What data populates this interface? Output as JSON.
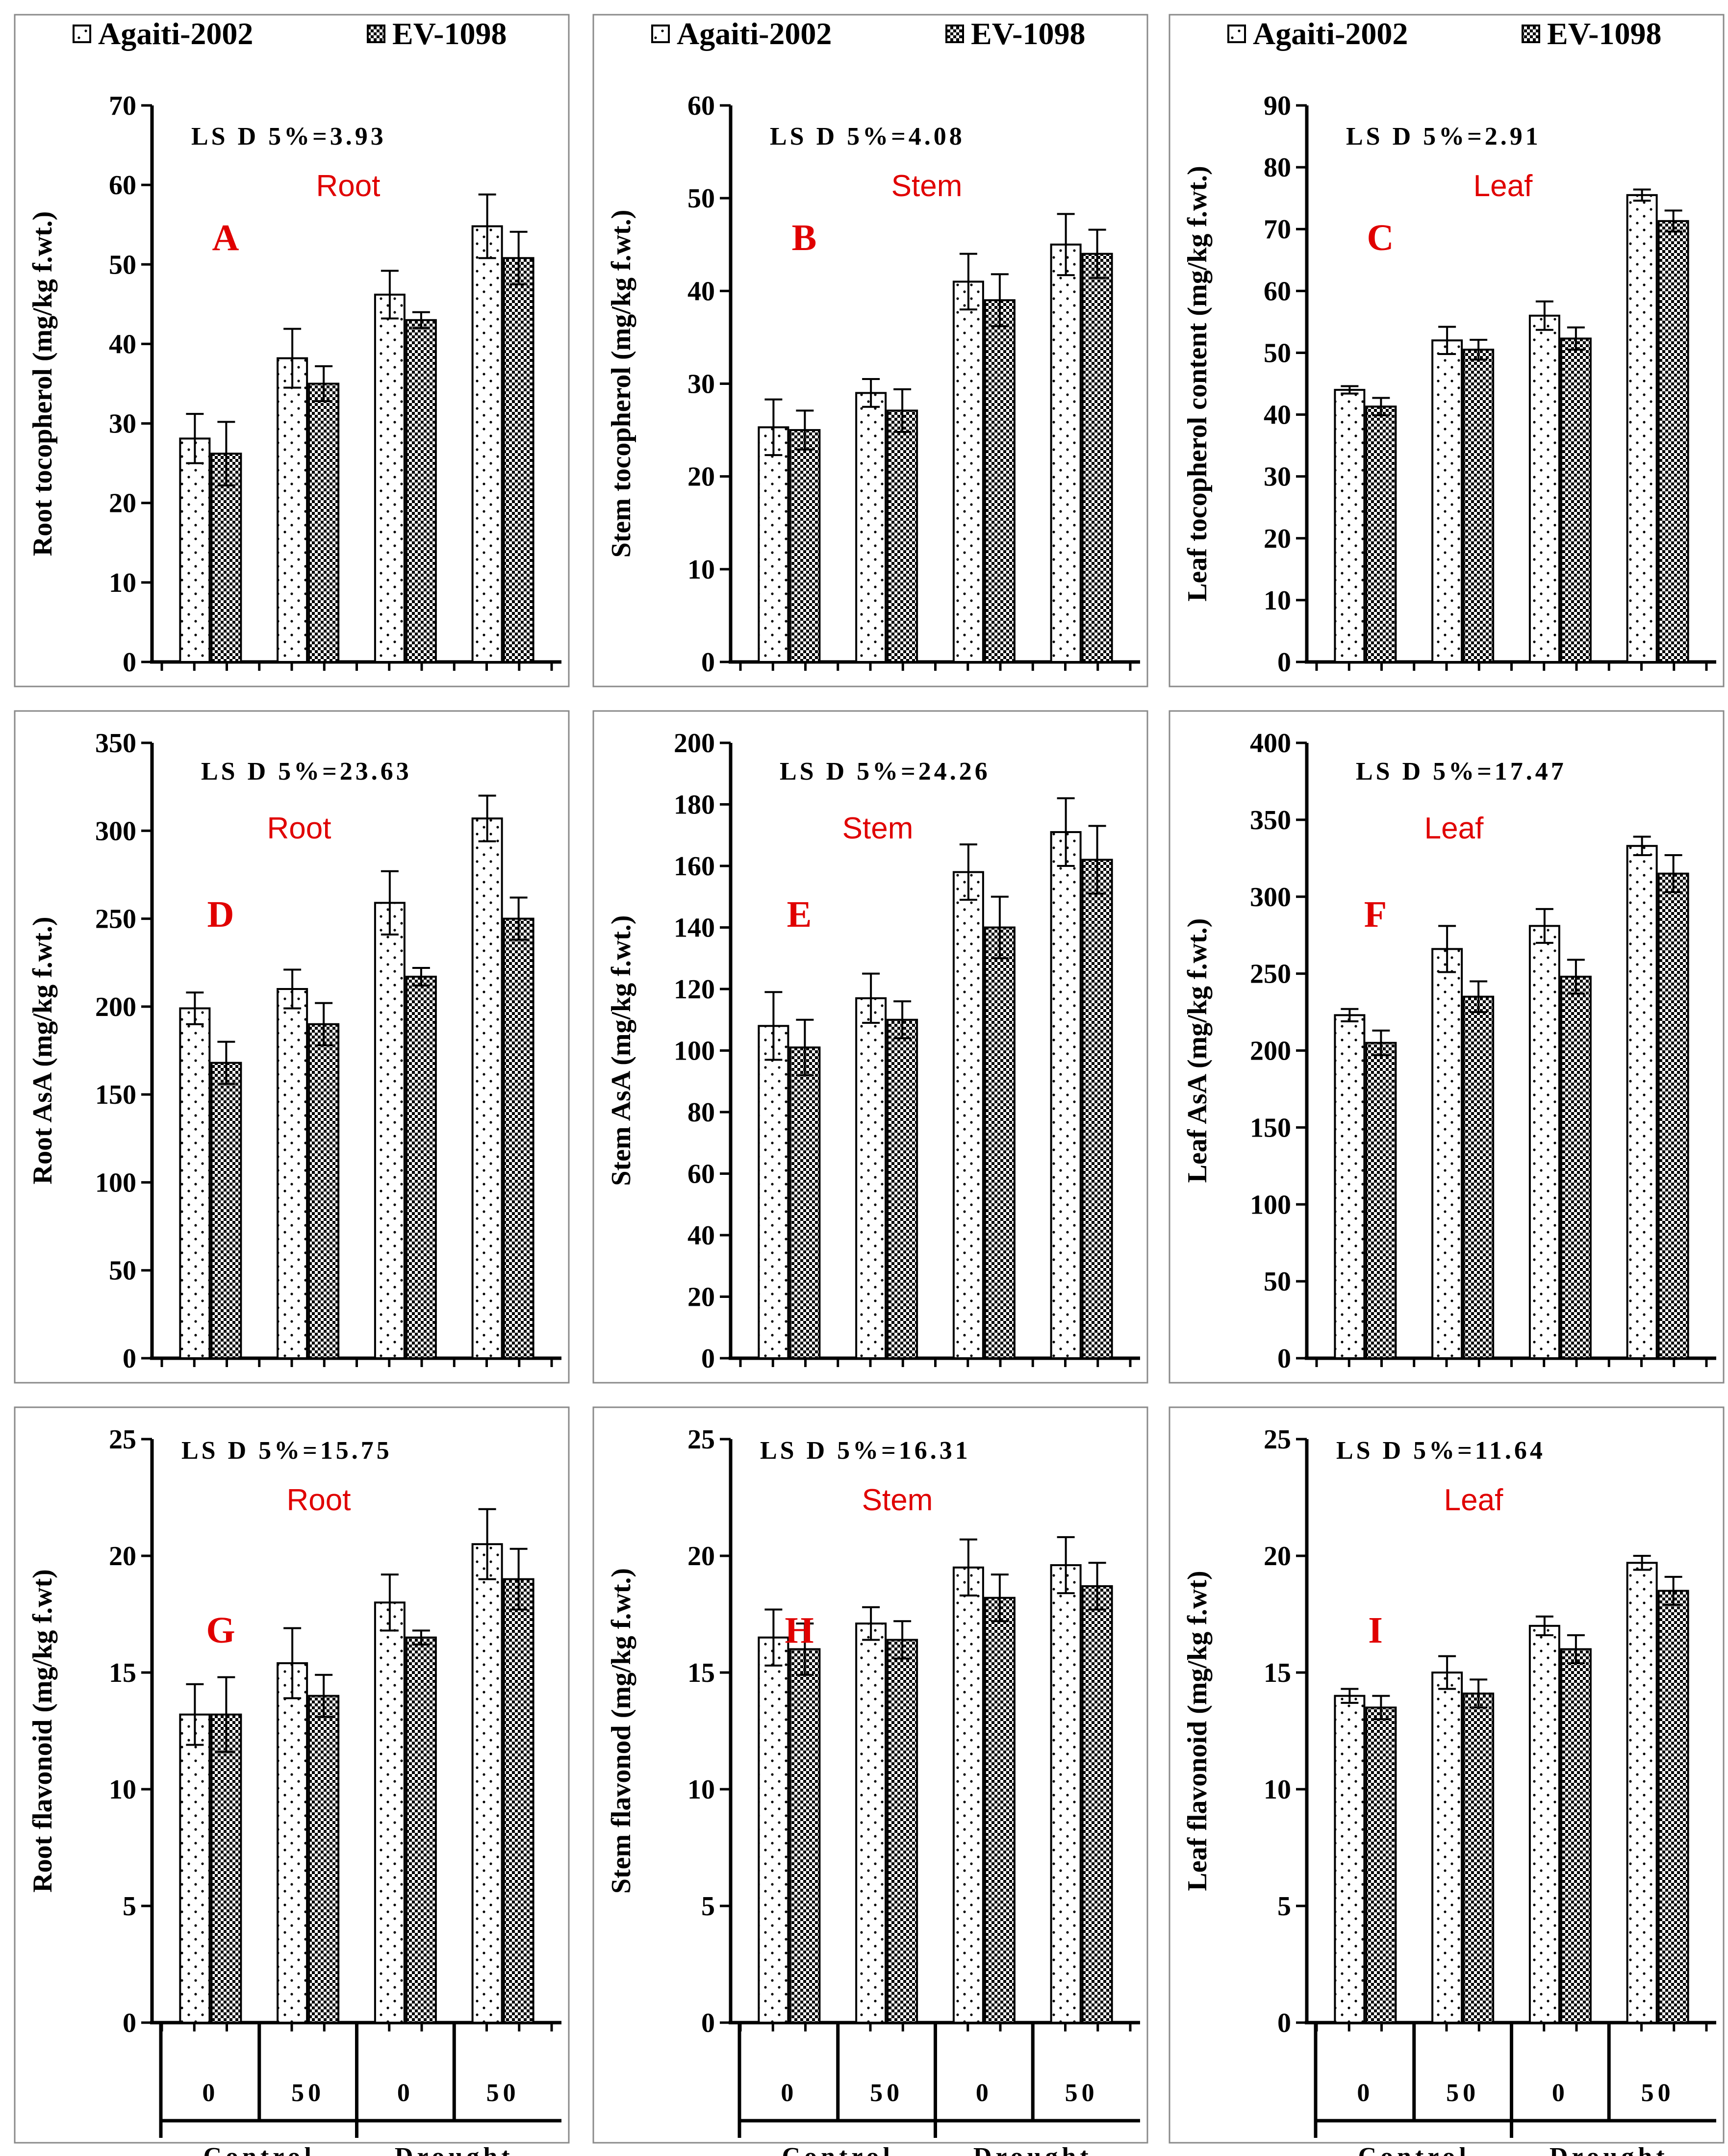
{
  "legend": {
    "series_a": "Agaiti-2002",
    "series_b": "EV-1098"
  },
  "x_axis": {
    "levels": [
      "0",
      "50",
      "0",
      "50"
    ],
    "groups": [
      "Control",
      "Drought"
    ]
  },
  "colors": {
    "organ_label": "#e00000",
    "panel_letter": "#e00000",
    "border": "#8a8a8a"
  },
  "chart_data": [
    {
      "id": "A",
      "type": "bar",
      "organ": "Root",
      "ylabel": "Root tocopherol (mg/kg f.wt.)",
      "lsd": "LS D 5%=3.93",
      "ylim": [
        0,
        70
      ],
      "ticks": [
        0,
        10,
        20,
        30,
        40,
        50,
        60,
        70
      ],
      "series": [
        {
          "name": "Agaiti-2002",
          "values": [
            28.1,
            38.2,
            46.2,
            54.8
          ],
          "errors": [
            3.1,
            3.7,
            3.0,
            4.0
          ]
        },
        {
          "name": "EV-1098",
          "values": [
            26.2,
            35.0,
            43.0,
            50.8
          ],
          "errors": [
            4.0,
            2.2,
            1.0,
            3.3
          ]
        }
      ]
    },
    {
      "id": "B",
      "type": "bar",
      "organ": "Stem",
      "ylabel": "Stem tocopherol (mg/kg f.wt.)",
      "lsd": "LS D 5%=4.08",
      "ylim": [
        0,
        60
      ],
      "ticks": [
        0,
        10,
        20,
        30,
        40,
        50,
        60
      ],
      "series": [
        {
          "name": "Agaiti-2002",
          "values": [
            25.3,
            29.0,
            41.0,
            45.0
          ],
          "errors": [
            3.0,
            1.5,
            3.0,
            3.3
          ]
        },
        {
          "name": "EV-1098",
          "values": [
            25.0,
            27.1,
            39.0,
            44.0
          ],
          "errors": [
            2.1,
            2.3,
            2.8,
            2.6
          ]
        }
      ]
    },
    {
      "id": "C",
      "type": "bar",
      "organ": "Leaf",
      "ylabel": "Leaf tocopherol content (mg/kg f.wt.)",
      "lsd": "LS D 5%=2.91",
      "ylim": [
        0,
        90
      ],
      "ticks": [
        0,
        10,
        20,
        30,
        40,
        50,
        60,
        70,
        80,
        90
      ],
      "series": [
        {
          "name": "Agaiti-2002",
          "values": [
            44.0,
            52.0,
            56.0,
            75.5
          ],
          "errors": [
            0.6,
            2.2,
            2.3,
            0.9
          ]
        },
        {
          "name": "EV-1098",
          "values": [
            41.3,
            50.5,
            52.3,
            71.3
          ],
          "errors": [
            1.4,
            1.6,
            1.8,
            1.7
          ]
        }
      ]
    },
    {
      "id": "D",
      "type": "bar",
      "organ": "Root",
      "ylabel": "Root AsA (mg/kg f.wt.)",
      "lsd": "LS D 5%=23.63",
      "ylim": [
        0,
        350
      ],
      "ticks": [
        0,
        50,
        100,
        150,
        200,
        250,
        300,
        350
      ],
      "series": [
        {
          "name": "Agaiti-2002",
          "values": [
            199,
            210,
            259,
            307
          ],
          "errors": [
            9,
            11,
            18,
            13
          ]
        },
        {
          "name": "EV-1098",
          "values": [
            168,
            190,
            217,
            250
          ],
          "errors": [
            12,
            12,
            5,
            12
          ]
        }
      ]
    },
    {
      "id": "E",
      "type": "bar",
      "organ": "Stem",
      "ylabel": "Stem AsA (mg/kg f.wt.)",
      "lsd": "LS D 5%=24.26",
      "ylim": [
        0,
        200
      ],
      "ticks": [
        0,
        20,
        40,
        60,
        80,
        100,
        120,
        140,
        160,
        180,
        200
      ],
      "series": [
        {
          "name": "Agaiti-2002",
          "values": [
            108,
            117,
            158,
            171
          ],
          "errors": [
            11,
            8,
            9,
            11
          ]
        },
        {
          "name": "EV-1098",
          "values": [
            101,
            110,
            140,
            162
          ],
          "errors": [
            9,
            6,
            10,
            11
          ]
        }
      ]
    },
    {
      "id": "F",
      "type": "bar",
      "organ": "Leaf",
      "ylabel": "Leaf AsA (mg/kg f.wt.)",
      "lsd": "LS D 5%=17.47",
      "ylim": [
        0,
        400
      ],
      "ticks": [
        0,
        50,
        100,
        150,
        200,
        250,
        300,
        350,
        400
      ],
      "series": [
        {
          "name": "Agaiti-2002",
          "values": [
            223,
            266,
            281,
            333
          ],
          "errors": [
            4,
            15,
            11,
            6
          ]
        },
        {
          "name": "EV-1098",
          "values": [
            205,
            235,
            248,
            315
          ],
          "errors": [
            8,
            10,
            11,
            12
          ]
        }
      ]
    },
    {
      "id": "G",
      "type": "bar",
      "organ": "Root",
      "ylabel": "Root flavonoid (mg/kg f.wt)",
      "lsd": "LS D 5%=15.75",
      "ylim": [
        0,
        25
      ],
      "ticks": [
        0,
        5,
        10,
        15,
        20,
        25
      ],
      "series": [
        {
          "name": "Agaiti-2002",
          "values": [
            13.2,
            15.4,
            18.0,
            20.5
          ],
          "errors": [
            1.3,
            1.5,
            1.2,
            1.5
          ]
        },
        {
          "name": "EV-1098",
          "values": [
            13.2,
            14.0,
            16.5,
            19.0
          ],
          "errors": [
            1.6,
            0.9,
            0.3,
            1.3
          ]
        }
      ]
    },
    {
      "id": "H",
      "type": "bar",
      "organ": "Stem",
      "ylabel": "Stem flavonod (mg/kg f.wt.)",
      "lsd": "LS D 5%=16.31",
      "ylim": [
        0,
        25
      ],
      "ticks": [
        0,
        5,
        10,
        15,
        20,
        25
      ],
      "series": [
        {
          "name": "Agaiti-2002",
          "values": [
            16.5,
            17.1,
            19.5,
            19.6
          ],
          "errors": [
            1.2,
            0.7,
            1.2,
            1.2
          ]
        },
        {
          "name": "EV-1098",
          "values": [
            16.0,
            16.4,
            18.2,
            18.7
          ],
          "errors": [
            1.1,
            0.8,
            1.0,
            1.0
          ]
        }
      ]
    },
    {
      "id": "I",
      "type": "bar",
      "organ": "Leaf",
      "ylabel": "Leaf flavonoid (mg/kg f.wt)",
      "lsd": "LS D 5%=11.64",
      "ylim": [
        0,
        25
      ],
      "ticks": [
        0,
        5,
        10,
        15,
        20,
        25
      ],
      "series": [
        {
          "name": "Agaiti-2002",
          "values": [
            14.0,
            15.0,
            17.0,
            19.7
          ],
          "errors": [
            0.3,
            0.7,
            0.4,
            0.3
          ]
        },
        {
          "name": "EV-1098",
          "values": [
            13.5,
            14.1,
            16.0,
            18.5
          ],
          "errors": [
            0.5,
            0.6,
            0.6,
            0.6
          ]
        }
      ]
    }
  ]
}
